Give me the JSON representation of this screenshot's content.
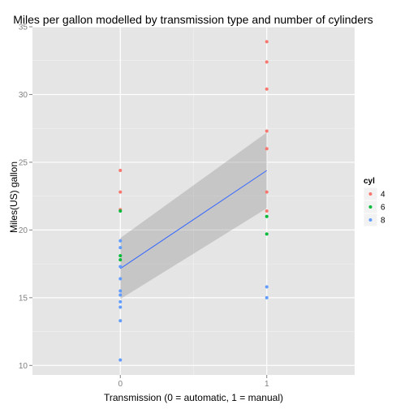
{
  "chart_data": {
    "type": "scatter",
    "title": "Miles per gallon modelled by transmission type and number of cylinders",
    "xlabel": "Transmission (0 = automatic, 1 = manual)",
    "ylabel": "Miles(US) gallon",
    "xlim": [
      -0.6,
      1.6
    ],
    "ylim": [
      9.3,
      35
    ],
    "xticks": [
      0,
      1
    ],
    "yticks": [
      10,
      15,
      20,
      25,
      30,
      35
    ],
    "grid": true,
    "legend": {
      "title": "cyl",
      "position": "right"
    },
    "series": [
      {
        "name": "4",
        "color": "#F8766D",
        "points": [
          [
            0,
            24.4
          ],
          [
            0,
            22.8
          ],
          [
            0,
            21.5
          ],
          [
            1,
            33.9
          ],
          [
            1,
            32.4
          ],
          [
            1,
            30.4
          ],
          [
            1,
            27.3
          ],
          [
            1,
            26.0
          ],
          [
            1,
            22.8
          ],
          [
            1,
            21.4
          ]
        ]
      },
      {
        "name": "6",
        "color": "#00BA38",
        "points": [
          [
            0,
            21.4
          ],
          [
            0,
            18.1
          ],
          [
            0,
            17.8
          ],
          [
            1,
            21.0
          ],
          [
            1,
            19.7
          ]
        ]
      },
      {
        "name": "8",
        "color": "#619CFF",
        "points": [
          [
            0,
            19.2
          ],
          [
            0,
            18.7
          ],
          [
            0,
            17.3
          ],
          [
            0,
            16.4
          ],
          [
            0,
            15.5
          ],
          [
            0,
            15.2
          ],
          [
            0,
            14.7
          ],
          [
            0,
            14.3
          ],
          [
            0,
            13.3
          ],
          [
            0,
            10.4
          ],
          [
            1,
            15.8
          ],
          [
            1,
            15.0
          ]
        ]
      }
    ],
    "fit": {
      "method": "lm",
      "color": "#3366FF",
      "line": [
        [
          0,
          17.15
        ],
        [
          1,
          24.39
        ]
      ],
      "ribbon_lower": [
        [
          0,
          14.9
        ],
        [
          1,
          21.6
        ]
      ],
      "ribbon_upper": [
        [
          0,
          19.4
        ],
        [
          1,
          27.2
        ]
      ]
    }
  }
}
